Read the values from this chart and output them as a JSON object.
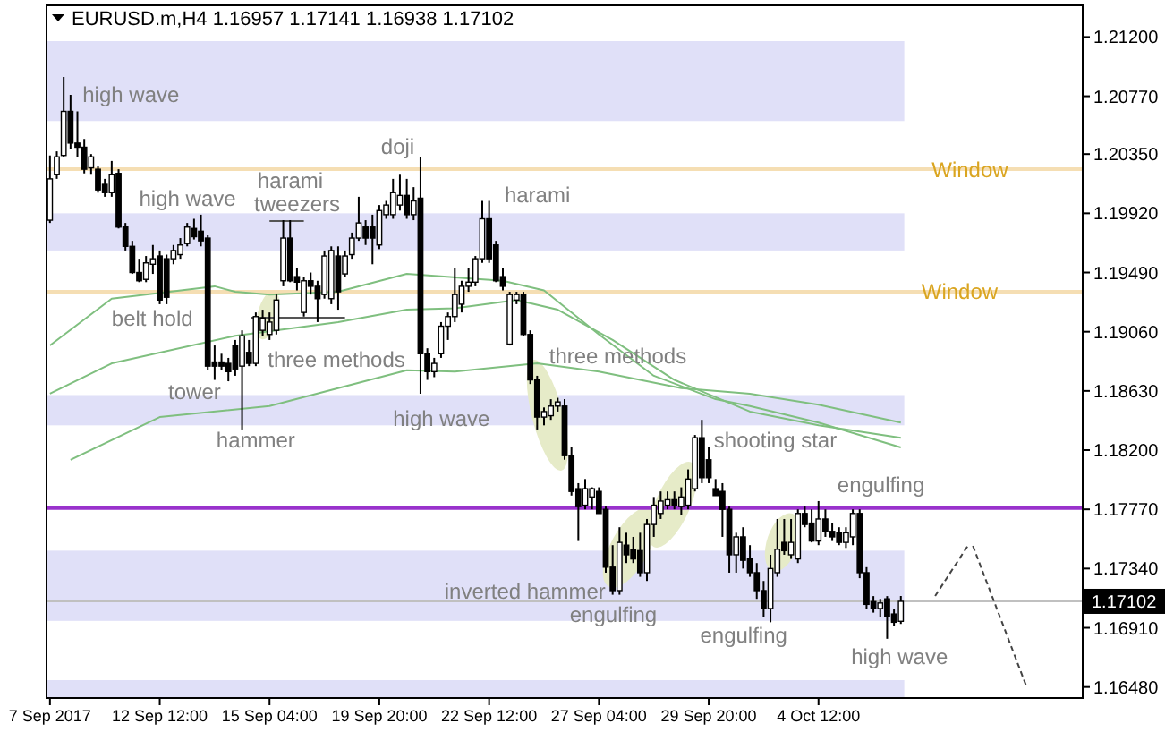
{
  "chart_data": {
    "type": "candlestick",
    "title": "EURUSD.m,H4 1.16957 1.17141 1.16938 1.17102",
    "categories": [
      "7 Sep 2017",
      null,
      null,
      null,
      null,
      null,
      null,
      null,
      null,
      null,
      null,
      null,
      null,
      null,
      null,
      null,
      "12 Sep 12:00",
      null,
      null,
      null,
      null,
      null,
      null,
      null,
      null,
      null,
      null,
      null,
      null,
      null,
      null,
      null,
      "15 Sep 04:00",
      null,
      null,
      null,
      null,
      null,
      null,
      null,
      null,
      null,
      null,
      null,
      null,
      null,
      null,
      null,
      "19 Sep 20:00",
      null,
      null,
      null,
      null,
      null,
      null,
      null,
      null,
      null,
      null,
      null,
      null,
      null,
      null,
      null,
      "22 Sep 12:00",
      null,
      null,
      null,
      null,
      null,
      null,
      null,
      null,
      null,
      null,
      null,
      null,
      null,
      null,
      null,
      "27 Sep 04:00",
      null,
      null,
      null,
      null,
      null,
      null,
      null,
      null,
      null,
      null,
      null,
      null,
      null,
      null,
      null,
      "29 Sep 20:00",
      null,
      null,
      null,
      null,
      null,
      null,
      null,
      null,
      null,
      null,
      null,
      null,
      null,
      null,
      null,
      "4 Oct 12:00",
      null,
      null,
      null,
      null,
      null,
      null,
      null,
      null,
      null,
      null,
      null,
      null,
      null,
      null,
      null,
      null,
      null,
      null,
      null,
      null,
      null,
      null,
      null,
      null,
      null,
      null,
      null,
      null,
      null,
      null,
      null,
      null,
      null,
      null,
      null,
      null,
      null,
      null
    ],
    "ohlc": [
      [
        1.1987,
        1.2034,
        1.1985,
        1.2017
      ],
      [
        1.202,
        1.2037,
        1.2017,
        1.2033
      ],
      [
        1.2034,
        1.2091,
        1.2033,
        1.2066
      ],
      [
        1.2066,
        1.2078,
        1.2039,
        1.2043
      ],
      [
        1.2043,
        1.2066,
        1.2033,
        1.204
      ],
      [
        1.204,
        1.2046,
        1.2021,
        1.2024
      ],
      [
        1.2025,
        1.2035,
        1.202,
        1.2033
      ],
      [
        1.2024,
        1.2026,
        1.2007,
        1.2009
      ],
      [
        1.2013,
        1.2017,
        1.2004,
        1.2007
      ],
      [
        1.2007,
        1.203,
        1.2004,
        1.202
      ],
      [
        1.2021,
        1.2024,
        1.1981,
        1.1982
      ],
      [
        1.1982,
        1.1985,
        1.1965,
        1.1968
      ],
      [
        1.1968,
        1.1972,
        1.1948,
        1.1949
      ],
      [
        1.1949,
        1.1959,
        1.1942,
        1.1943
      ],
      [
        1.1944,
        1.1961,
        1.1942,
        1.1956
      ],
      [
        1.1955,
        1.1969,
        1.1948,
        1.1959
      ],
      [
        1.1961,
        1.1965,
        1.1926,
        1.1929
      ],
      [
        1.1959,
        1.1962,
        1.1926,
        1.1931
      ],
      [
        1.1959,
        1.1969,
        1.1955,
        1.1965
      ],
      [
        1.1962,
        1.1974,
        1.1959,
        1.1969
      ],
      [
        1.197,
        1.1985,
        1.1968,
        1.1982
      ],
      [
        1.1981,
        1.1988,
        1.1973,
        1.1975
      ],
      [
        1.1979,
        1.1991,
        1.1968,
        1.1972
      ],
      [
        1.1974,
        1.1976,
        1.1878,
        1.1881
      ],
      [
        1.1884,
        1.1896,
        1.1871,
        1.1881
      ],
      [
        1.1884,
        1.189,
        1.1878,
        1.1881
      ],
      [
        1.1883,
        1.1887,
        1.187,
        1.1877
      ],
      [
        1.1896,
        1.19,
        1.1874,
        1.1879
      ],
      [
        1.1881,
        1.1907,
        1.1835,
        1.1903
      ],
      [
        1.1891,
        1.19,
        1.1881,
        1.1883
      ],
      [
        1.1883,
        1.192,
        1.1881,
        1.1917
      ],
      [
        1.1907,
        1.1922,
        1.1903,
        1.1916
      ],
      [
        1.1904,
        1.192,
        1.19,
        1.1913
      ],
      [
        1.1907,
        1.1933,
        1.1904,
        1.1929
      ],
      [
        1.1943,
        1.1987,
        1.1939,
        1.1974
      ],
      [
        1.1974,
        1.1987,
        1.1942,
        1.1943
      ],
      [
        1.1946,
        1.1952,
        1.1936,
        1.1942
      ],
      [
        1.192,
        1.1946,
        1.1917,
        1.1943
      ],
      [
        1.1943,
        1.1949,
        1.1933,
        1.1939
      ],
      [
        1.1939,
        1.1943,
        1.1913,
        1.193
      ],
      [
        1.1933,
        1.1965,
        1.193,
        1.1961
      ],
      [
        1.193,
        1.1968,
        1.1926,
        1.1965
      ],
      [
        1.1961,
        1.1968,
        1.1922,
        1.1935
      ],
      [
        1.1948,
        1.1965,
        1.1946,
        1.1961
      ],
      [
        1.1962,
        1.1978,
        1.1959,
        1.1974
      ],
      [
        1.1974,
        1.2004,
        1.1972,
        1.1985
      ],
      [
        1.1982,
        1.1987,
        1.1969,
        1.1974
      ],
      [
        1.1982,
        1.1991,
        1.1955,
        1.1974
      ],
      [
        1.1969,
        1.1998,
        1.1966,
        1.1994
      ],
      [
        1.1991,
        1.2001,
        1.1988,
        1.1998
      ],
      [
        1.1991,
        1.2017,
        1.1988,
        1.2007
      ],
      [
        1.1998,
        1.202,
        1.1994,
        1.2005
      ],
      [
        1.2005,
        1.2017,
        1.1988,
        1.1991
      ],
      [
        1.1991,
        1.2011,
        1.1987,
        1.2001
      ],
      [
        1.2003,
        1.2033,
        1.1861,
        1.189
      ],
      [
        1.189,
        1.1894,
        1.1871,
        1.1877
      ],
      [
        1.1877,
        1.1887,
        1.1873,
        1.1883
      ],
      [
        1.189,
        1.1913,
        1.1887,
        1.191
      ],
      [
        1.191,
        1.192,
        1.19,
        1.1917
      ],
      [
        1.1917,
        1.1952,
        1.1913,
        1.1933
      ],
      [
        1.1926,
        1.1943,
        1.192,
        1.1939
      ],
      [
        1.1939,
        1.1952,
        1.1935,
        1.1942
      ],
      [
        1.1942,
        1.1961,
        1.1939,
        1.1959
      ],
      [
        1.1959,
        1.2001,
        1.1956,
        1.1988
      ],
      [
        1.1988,
        1.2001,
        1.1956,
        1.1959
      ],
      [
        1.1969,
        1.1972,
        1.1942,
        1.1943
      ],
      [
        1.1946,
        1.1952,
        1.1936,
        1.1939
      ],
      [
        1.1897,
        1.1935,
        1.1896,
        1.1933
      ],
      [
        1.1929,
        1.1935,
        1.1926,
        1.1933
      ],
      [
        1.1933,
        1.1935,
        1.1903,
        1.1904
      ],
      [
        1.1904,
        1.1907,
        1.1868,
        1.1871
      ],
      [
        1.1871,
        1.1874,
        1.1835,
        1.1844
      ],
      [
        1.1844,
        1.1851,
        1.1838,
        1.1848
      ],
      [
        1.1845,
        1.1857,
        1.1842,
        1.1852
      ],
      [
        1.1852,
        1.1858,
        1.1848,
        1.1855
      ],
      [
        1.1852,
        1.1857,
        1.1813,
        1.1816
      ],
      [
        1.1816,
        1.1822,
        1.1787,
        1.179
      ],
      [
        1.1792,
        1.1796,
        1.1754,
        1.1779
      ],
      [
        1.178,
        1.1799,
        1.1777,
        1.1792
      ],
      [
        1.1786,
        1.1793,
        1.1777,
        1.1792
      ],
      [
        1.179,
        1.1793,
        1.1774,
        1.1774
      ],
      [
        1.1777,
        1.1779,
        1.1731,
        1.1735
      ],
      [
        1.1735,
        1.1751,
        1.1715,
        1.1718
      ],
      [
        1.1718,
        1.1764,
        1.1715,
        1.1753
      ],
      [
        1.1751,
        1.176,
        1.1738,
        1.1744
      ],
      [
        1.1748,
        1.1757,
        1.1738,
        1.1741
      ],
      [
        1.1747,
        1.176,
        1.1728,
        1.1731
      ],
      [
        1.1731,
        1.177,
        1.1725,
        1.1766
      ],
      [
        1.1766,
        1.1786,
        1.1757,
        1.178
      ],
      [
        1.1774,
        1.179,
        1.177,
        1.1783
      ],
      [
        1.178,
        1.179,
        1.1777,
        1.1784
      ],
      [
        1.1784,
        1.179,
        1.1777,
        1.178
      ],
      [
        1.1779,
        1.1793,
        1.1773,
        1.1786
      ],
      [
        1.178,
        1.1806,
        1.1777,
        1.1799
      ],
      [
        1.1792,
        1.1831,
        1.179,
        1.1829
      ],
      [
        1.1829,
        1.1842,
        1.1796,
        1.18
      ],
      [
        1.1813,
        1.1822,
        1.1796,
        1.18
      ],
      [
        1.1792,
        1.1799,
        1.1787,
        1.1787
      ],
      [
        1.179,
        1.1796,
        1.1757,
        1.1777
      ],
      [
        1.1777,
        1.1779,
        1.1731,
        1.1744
      ],
      [
        1.1744,
        1.176,
        1.1731,
        1.1757
      ],
      [
        1.1757,
        1.1764,
        1.1734,
        1.174
      ],
      [
        1.1741,
        1.1751,
        1.1728,
        1.1731
      ],
      [
        1.1731,
        1.1738,
        1.1712,
        1.1718
      ],
      [
        1.1718,
        1.1725,
        1.1699,
        1.1705
      ],
      [
        1.1705,
        1.1744,
        1.1695,
        1.1734
      ],
      [
        1.1731,
        1.177,
        1.1728,
        1.1748
      ],
      [
        1.1753,
        1.177,
        1.1744,
        1.1747
      ],
      [
        1.1744,
        1.177,
        1.1741,
        1.1753
      ],
      [
        1.1741,
        1.1777,
        1.1738,
        1.1774
      ],
      [
        1.1774,
        1.1779,
        1.1764,
        1.1766
      ],
      [
        1.1767,
        1.1777,
        1.1753,
        1.1754
      ],
      [
        1.1754,
        1.1783,
        1.1751,
        1.177
      ],
      [
        1.177,
        1.1777,
        1.1757,
        1.1761
      ],
      [
        1.1761,
        1.1767,
        1.1754,
        1.1757
      ],
      [
        1.176,
        1.1764,
        1.1751,
        1.1753
      ],
      [
        1.1753,
        1.1764,
        1.1749,
        1.176
      ],
      [
        1.1757,
        1.1777,
        1.1751,
        1.1774
      ],
      [
        1.1774,
        1.1777,
        1.1727,
        1.1731
      ],
      [
        1.1731,
        1.1735,
        1.1705,
        1.1708
      ],
      [
        1.171,
        1.1714,
        1.1702,
        1.1705
      ],
      [
        1.1705,
        1.1712,
        1.1699,
        1.1709
      ],
      [
        1.1712,
        1.1714,
        1.1683,
        1.1699
      ],
      [
        1.1701,
        1.1705,
        1.1692,
        1.1695
      ],
      [
        1.16957,
        1.17141,
        1.16938,
        1.17102
      ],
      null,
      null,
      null,
      null,
      null,
      null,
      null,
      null,
      null,
      null,
      null,
      null,
      null,
      null,
      null,
      null,
      null,
      null,
      null,
      null,
      null,
      null,
      null,
      null,
      null,
      null
    ],
    "series": [
      {
        "type": "line",
        "color": "#7fbf7f",
        "values": [
          1.1896,
          null,
          null,
          null,
          null,
          null,
          null,
          null,
          null,
          1.193,
          null,
          null,
          null,
          null,
          null,
          null,
          null,
          null,
          null,
          null,
          null,
          null,
          null,
          null,
          1.1939,
          null,
          null,
          1.1935,
          null,
          null,
          null,
          null,
          1.1933,
          null,
          null,
          null,
          null,
          null,
          null,
          null,
          null,
          null,
          1.1935,
          null,
          null,
          null,
          null,
          null,
          null,
          null,
          null,
          null,
          1.1948,
          null,
          null,
          null,
          null,
          null,
          null,
          null,
          null,
          null,
          null,
          null,
          null,
          null,
          1.1943,
          null,
          null,
          null,
          null,
          null,
          1.1936,
          null,
          null,
          null,
          null,
          null,
          null,
          null,
          1.1904,
          null,
          null,
          null,
          null,
          null,
          null,
          null,
          1.1874,
          null,
          null,
          null,
          null,
          null,
          null,
          null,
          null,
          1.1857,
          null,
          null,
          null,
          null,
          1.1852,
          null,
          null,
          null,
          null,
          null,
          null,
          null,
          null,
          null,
          1.184,
          null,
          null,
          null,
          null,
          null,
          null,
          null,
          null,
          null,
          null,
          null,
          1.1822,
          null,
          null,
          null,
          null,
          null,
          null,
          null,
          null,
          null,
          null,
          null,
          null,
          null,
          null,
          null,
          null,
          null,
          null,
          null,
          null,
          null,
          null,
          null,
          null,
          null,
          null
        ]
      },
      {
        "type": "line",
        "color": "#7fbf7f",
        "values": [
          1.1861,
          null,
          null,
          null,
          null,
          null,
          null,
          null,
          null,
          1.1883,
          null,
          null,
          null,
          null,
          null,
          null,
          null,
          null,
          null,
          null,
          null,
          null,
          null,
          null,
          null,
          null,
          null,
          1.1903,
          null,
          null,
          null,
          null,
          null,
          null,
          null,
          null,
          null,
          null,
          null,
          null,
          null,
          null,
          1.1913,
          null,
          null,
          null,
          null,
          null,
          null,
          null,
          null,
          null,
          1.1922,
          null,
          null,
          null,
          null,
          null,
          null,
          1.1923,
          null,
          null,
          null,
          null,
          null,
          null,
          null,
          null,
          1.1929,
          null,
          null,
          null,
          null,
          null,
          1.1922,
          null,
          null,
          null,
          null,
          null,
          null,
          null,
          1.19,
          null,
          null,
          null,
          null,
          null,
          null,
          null,
          null,
          1.1871,
          null,
          null,
          null,
          null,
          null,
          null,
          null,
          null,
          null,
          null,
          1.1848,
          null,
          null,
          null,
          null,
          null,
          null,
          null,
          null,
          null,
          1.1838,
          null,
          null,
          null,
          null,
          null,
          null,
          null,
          null,
          null,
          null,
          null,
          1.1829,
          null,
          null,
          null,
          null,
          null,
          null,
          null,
          null,
          null,
          null,
          null,
          null,
          null,
          null,
          null,
          null,
          null,
          null,
          null,
          null,
          null,
          null,
          null,
          null,
          null,
          null
        ]
      },
      {
        "type": "line",
        "color": "#7fbf7f",
        "values": [
          null,
          null,
          null,
          1.1813,
          null,
          null,
          null,
          null,
          null,
          null,
          null,
          null,
          null,
          null,
          null,
          null,
          1.1844,
          null,
          null,
          null,
          null,
          null,
          null,
          null,
          null,
          null,
          null,
          null,
          null,
          null,
          null,
          null,
          1.1852,
          null,
          null,
          null,
          null,
          null,
          null,
          null,
          null,
          null,
          null,
          null,
          null,
          null,
          null,
          null,
          null,
          null,
          null,
          null,
          1.1878,
          null,
          null,
          null,
          null,
          null,
          null,
          1.1877,
          null,
          null,
          null,
          null,
          null,
          null,
          null,
          null,
          null,
          null,
          null,
          1.1883,
          null,
          null,
          null,
          null,
          null,
          null,
          null,
          null,
          1.1877,
          null,
          null,
          null,
          null,
          null,
          null,
          null,
          null,
          null,
          null,
          null,
          1.1865,
          null,
          null,
          null,
          null,
          null,
          null,
          null,
          null,
          null,
          1.1861,
          null,
          null,
          null,
          null,
          null,
          null,
          null,
          null,
          null,
          1.1853,
          null,
          null,
          null,
          null,
          null,
          null,
          null,
          null,
          null,
          null,
          null,
          1.184,
          null,
          null,
          null,
          null,
          null,
          null,
          null,
          null,
          null,
          null,
          null,
          null,
          null,
          null,
          null,
          null,
          null,
          null,
          null,
          null,
          null,
          null,
          null,
          null,
          null,
          null
        ]
      }
    ],
    "ylim": [
      1.164,
      1.2143
    ],
    "yticks": [
      {
        "value": 1.212,
        "label": "1.21200"
      },
      {
        "value": 1.2077,
        "label": "1.20770"
      },
      {
        "value": 1.2035,
        "label": "1.20350"
      },
      {
        "value": 1.1992,
        "label": "1.19920"
      },
      {
        "value": 1.1949,
        "label": "1.19490"
      },
      {
        "value": 1.1906,
        "label": "1.19060"
      },
      {
        "value": 1.1863,
        "label": "1.18630"
      },
      {
        "value": 1.182,
        "label": "1.18200"
      },
      {
        "value": 1.1777,
        "label": "1.17770"
      },
      {
        "value": 1.1734,
        "label": "1.17340"
      },
      {
        "value": 1.1691,
        "label": "1.16910"
      },
      {
        "value": 1.1648,
        "label": "1.16480"
      }
    ],
    "bands": [
      {
        "axis": "y",
        "from": 1.2059,
        "to": 1.2117,
        "color": "#e0e0f8"
      },
      {
        "axis": "y",
        "from": 1.1965,
        "to": 1.1992,
        "color": "#e0e0f8"
      },
      {
        "axis": "y",
        "from": 1.1838,
        "to": 1.186,
        "color": "#e0e0f8"
      },
      {
        "axis": "y",
        "from": 1.1696,
        "to": 1.1747,
        "color": "#e0e0f8"
      },
      {
        "axis": "y",
        "from": 1.164,
        "to": 1.1653,
        "color": "#e0e0f8"
      }
    ],
    "ref_lines": [
      {
        "axis": "y",
        "value": 1.2024,
        "label": "Window",
        "color": "#f5deb3"
      },
      {
        "axis": "y",
        "value": 1.1935,
        "label": "Window",
        "color": "#f5deb3"
      },
      {
        "axis": "y",
        "value": 1.1778,
        "color": "#9932cc"
      },
      {
        "axis": "y",
        "value": 1.17102,
        "label": "1.17102",
        "color": "#c0c0c0"
      }
    ],
    "annotations": [
      "high wave",
      "high wave",
      {
        "text": "harami",
        "y": 1.1987
      },
      "tweezers",
      "doji",
      "harami",
      {
        "text": "belt hold",
        "y": 1.1926
      },
      "three methods",
      {
        "text": "three methods",
        "y": 1.1874
      },
      "tower",
      {
        "text": "hammer",
        "y": 1.1835
      },
      "high wave",
      "shooting star",
      {
        "text": "engulfing",
        "y": 1.1777
      },
      {
        "text": "inverted hammer",
        "y": 1.1715
      },
      {
        "text": "engulfing",
        "y": 1.1715
      },
      {
        "text": "engulfing",
        "y": 1.1695
      },
      "high wave"
    ],
    "grid": false
  }
}
